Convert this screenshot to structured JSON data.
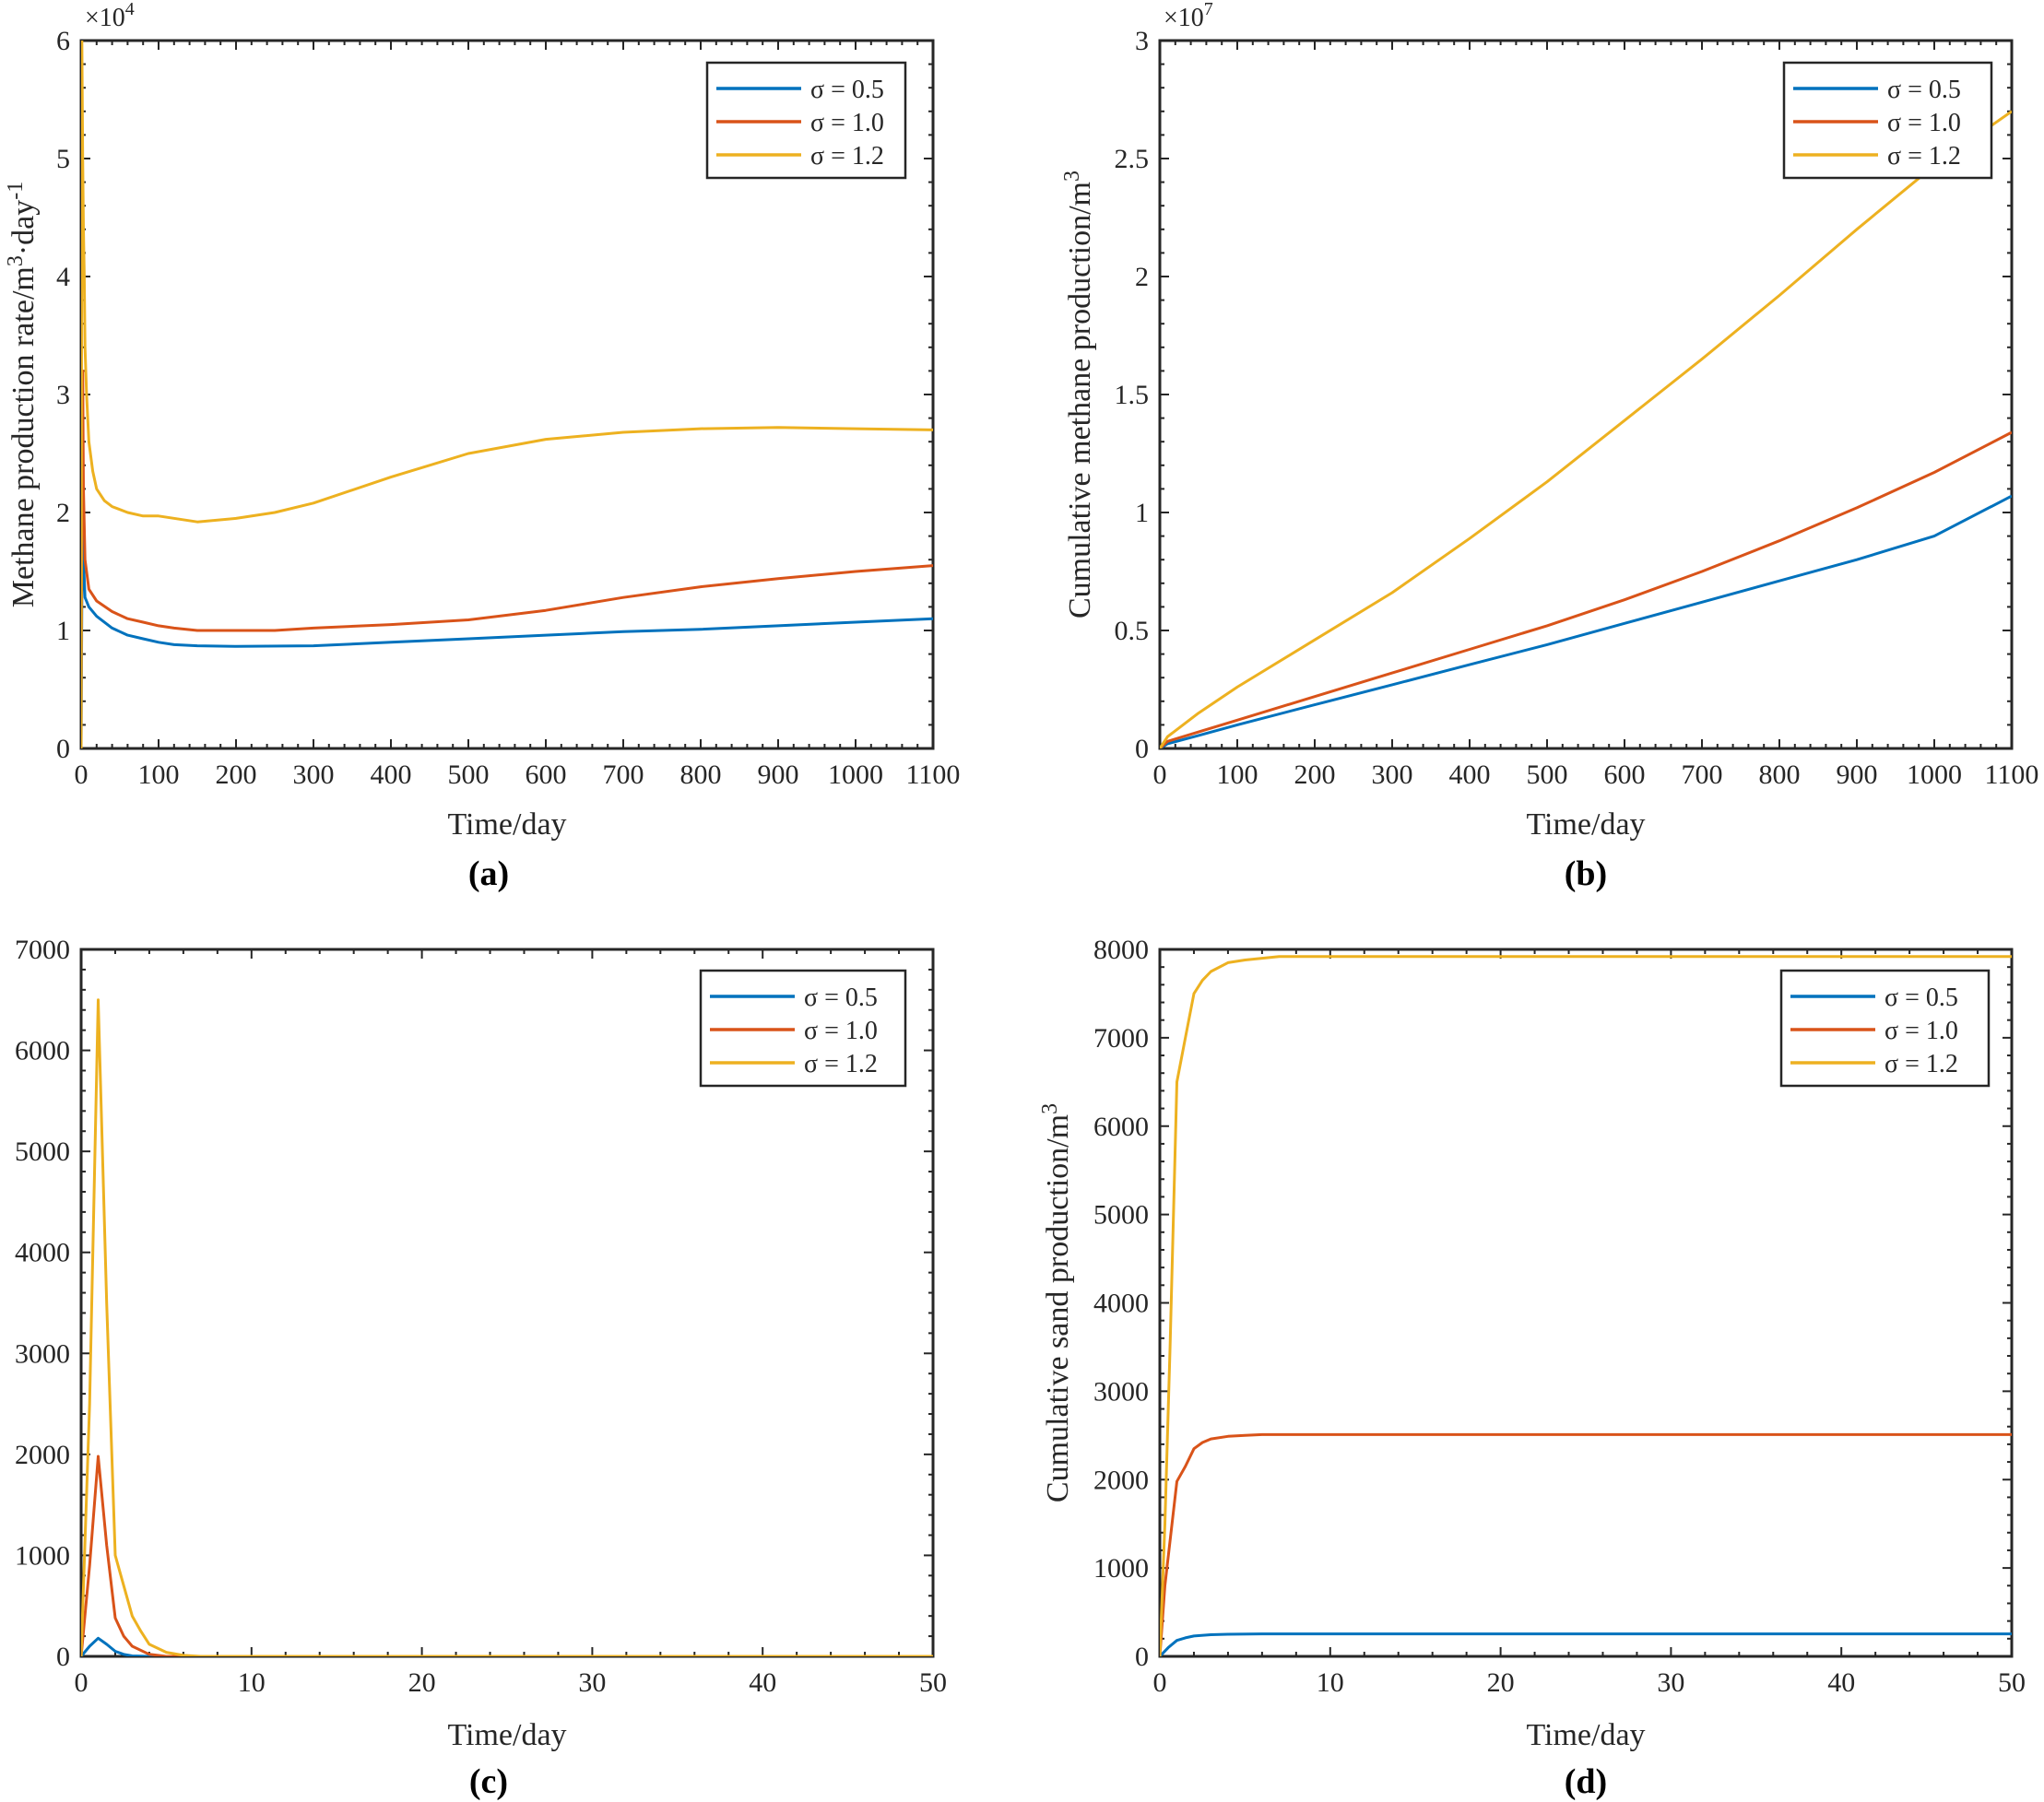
{
  "figure": {
    "colors": {
      "s05": "#0072BD",
      "s10": "#D95319",
      "s12": "#EDB120",
      "axis": "#262626"
    },
    "legend_labels": {
      "s05": "σ = 0.5",
      "s10": "σ = 1.0",
      "s12": "σ = 1.2"
    }
  },
  "chart_data": [
    {
      "id": "a",
      "type": "line",
      "panel_label": "(a)",
      "xlabel": "Time/day",
      "ylabel_main": "Methane production rate/m",
      "ylabel_sup1": "3",
      "ylabel_mid": "·day",
      "ylabel_sup2": "-1",
      "exponent_base": "×10",
      "exponent_power": "4",
      "xlim": [
        0,
        1100
      ],
      "ylim": [
        0,
        6
      ],
      "xticks": [
        "0",
        "100",
        "200",
        "300",
        "400",
        "500",
        "600",
        "700",
        "800",
        "900",
        "1000",
        "1100"
      ],
      "yticks": [
        "0",
        "1",
        "2",
        "3",
        "4",
        "5",
        "6"
      ],
      "series": [
        {
          "name": "σ = 0.5",
          "color": "#0072BD",
          "x": [
            0,
            1,
            2,
            3,
            5,
            10,
            20,
            40,
            60,
            80,
            100,
            120,
            150,
            200,
            300,
            400,
            500,
            600,
            700,
            800,
            900,
            1000,
            1100
          ],
          "y": [
            0,
            1.3,
            2.0,
            1.6,
            1.28,
            1.2,
            1.12,
            1.02,
            0.96,
            0.93,
            0.9,
            0.88,
            0.87,
            0.865,
            0.87,
            0.9,
            0.93,
            0.96,
            0.99,
            1.01,
            1.04,
            1.07,
            1.1
          ]
        },
        {
          "name": "σ = 1.0",
          "color": "#D95319",
          "x": [
            0,
            1,
            2,
            3,
            5,
            10,
            20,
            40,
            60,
            80,
            100,
            120,
            150,
            200,
            250,
            300,
            400,
            500,
            600,
            700,
            800,
            900,
            1000,
            1100
          ],
          "y": [
            0,
            2.5,
            3.2,
            2.2,
            1.6,
            1.35,
            1.25,
            1.16,
            1.1,
            1.07,
            1.04,
            1.02,
            1.0,
            1.0,
            1.0,
            1.02,
            1.05,
            1.09,
            1.17,
            1.28,
            1.37,
            1.44,
            1.5,
            1.55
          ]
        },
        {
          "name": "σ = 1.2",
          "color": "#EDB120",
          "x": [
            0,
            1,
            2,
            3,
            4,
            5,
            7,
            10,
            15,
            20,
            30,
            40,
            60,
            80,
            100,
            150,
            200,
            250,
            300,
            400,
            500,
            600,
            700,
            800,
            900,
            1000,
            1100
          ],
          "y": [
            0,
            6.0,
            5.0,
            4.4,
            4.0,
            3.4,
            3.0,
            2.6,
            2.35,
            2.2,
            2.1,
            2.05,
            2.0,
            1.97,
            1.97,
            1.92,
            1.95,
            2.0,
            2.08,
            2.3,
            2.5,
            2.62,
            2.68,
            2.71,
            2.72,
            2.71,
            2.7
          ]
        }
      ]
    },
    {
      "id": "b",
      "type": "line",
      "panel_label": "(b)",
      "xlabel": "Time/day",
      "ylabel_main": "Cumulative methane production/m",
      "ylabel_sup1": "3",
      "exponent_base": "×10",
      "exponent_power": "7",
      "xlim": [
        0,
        1100
      ],
      "ylim": [
        0,
        3
      ],
      "xticks": [
        "0",
        "100",
        "200",
        "300",
        "400",
        "500",
        "600",
        "700",
        "800",
        "900",
        "1000",
        "1100"
      ],
      "yticks": [
        "0",
        "0.5",
        "1",
        "1.5",
        "2",
        "2.5",
        "3"
      ],
      "series": [
        {
          "name": "σ = 0.5",
          "color": "#0072BD",
          "x": [
            0,
            10,
            50,
            100,
            200,
            300,
            400,
            500,
            600,
            700,
            800,
            900,
            1000,
            1100
          ],
          "y": [
            0,
            0.02,
            0.055,
            0.1,
            0.185,
            0.27,
            0.355,
            0.44,
            0.53,
            0.62,
            0.71,
            0.8,
            0.9,
            1.07
          ]
        },
        {
          "name": "σ = 1.0",
          "color": "#D95319",
          "x": [
            0,
            10,
            50,
            100,
            200,
            300,
            400,
            500,
            600,
            700,
            800,
            900,
            1000,
            1100
          ],
          "y": [
            0,
            0.03,
            0.07,
            0.12,
            0.22,
            0.32,
            0.42,
            0.52,
            0.63,
            0.75,
            0.88,
            1.02,
            1.17,
            1.34
          ]
        },
        {
          "name": "σ = 1.2",
          "color": "#EDB120",
          "x": [
            0,
            10,
            50,
            100,
            200,
            300,
            400,
            500,
            600,
            700,
            800,
            900,
            1000,
            1100
          ],
          "y": [
            0,
            0.05,
            0.15,
            0.26,
            0.46,
            0.66,
            0.89,
            1.13,
            1.39,
            1.65,
            1.92,
            2.2,
            2.47,
            2.7
          ]
        }
      ]
    },
    {
      "id": "c",
      "type": "line",
      "panel_label": "(c)",
      "xlabel": "Time/day",
      "ylabel_main": "",
      "xlim": [
        0,
        50
      ],
      "ylim": [
        0,
        7000
      ],
      "xticks": [
        "0",
        "10",
        "20",
        "30",
        "40",
        "50"
      ],
      "yticks": [
        "0",
        "1000",
        "2000",
        "3000",
        "4000",
        "5000",
        "6000",
        "7000"
      ],
      "series": [
        {
          "name": "σ = 0.5",
          "color": "#0072BD",
          "x": [
            0,
            0.5,
            1,
            1.5,
            2,
            2.5,
            3,
            4,
            50
          ],
          "y": [
            0,
            100,
            180,
            120,
            50,
            20,
            5,
            0,
            0
          ]
        },
        {
          "name": "σ = 1.0",
          "color": "#D95319",
          "x": [
            0,
            0.5,
            1,
            1.5,
            2,
            2.5,
            3,
            4,
            5,
            50
          ],
          "y": [
            0,
            900,
            1980,
            1100,
            380,
            200,
            100,
            20,
            0,
            0
          ]
        },
        {
          "name": "σ = 1.2",
          "color": "#EDB120",
          "x": [
            0,
            0.5,
            1,
            1.5,
            2,
            2.5,
            3,
            3.5,
            4,
            5,
            6,
            7,
            50
          ],
          "y": [
            0,
            2500,
            6500,
            3500,
            1000,
            700,
            400,
            250,
            120,
            40,
            10,
            0,
            0
          ]
        }
      ]
    },
    {
      "id": "d",
      "type": "line",
      "panel_label": "(d)",
      "xlabel": "Time/day",
      "ylabel_main": "Cumulative sand production/m",
      "ylabel_sup1": "3",
      "xlim": [
        0,
        50
      ],
      "ylim": [
        0,
        8000
      ],
      "xticks": [
        "0",
        "10",
        "20",
        "30",
        "40",
        "50"
      ],
      "yticks": [
        "0",
        "1000",
        "2000",
        "3000",
        "4000",
        "5000",
        "6000",
        "7000",
        "8000"
      ],
      "series": [
        {
          "name": "σ = 0.5",
          "color": "#0072BD",
          "x": [
            0,
            0.5,
            1,
            1.5,
            2,
            3,
            4,
            6,
            50
          ],
          "y": [
            0,
            100,
            180,
            210,
            230,
            245,
            250,
            255,
            255
          ]
        },
        {
          "name": "σ = 1.0",
          "color": "#D95319",
          "x": [
            0,
            0.3,
            1,
            1.5,
            2,
            2.5,
            3,
            4,
            5,
            6,
            50
          ],
          "y": [
            0,
            800,
            1980,
            2150,
            2350,
            2420,
            2460,
            2490,
            2500,
            2510,
            2510
          ]
        },
        {
          "name": "σ = 1.2",
          "color": "#EDB120",
          "x": [
            0,
            0.3,
            0.6,
            1,
            1.5,
            2,
            2.5,
            3,
            4,
            5,
            6,
            7,
            50
          ],
          "y": [
            0,
            1500,
            3500,
            6500,
            7000,
            7500,
            7650,
            7750,
            7850,
            7880,
            7900,
            7920,
            7920
          ]
        }
      ]
    }
  ]
}
